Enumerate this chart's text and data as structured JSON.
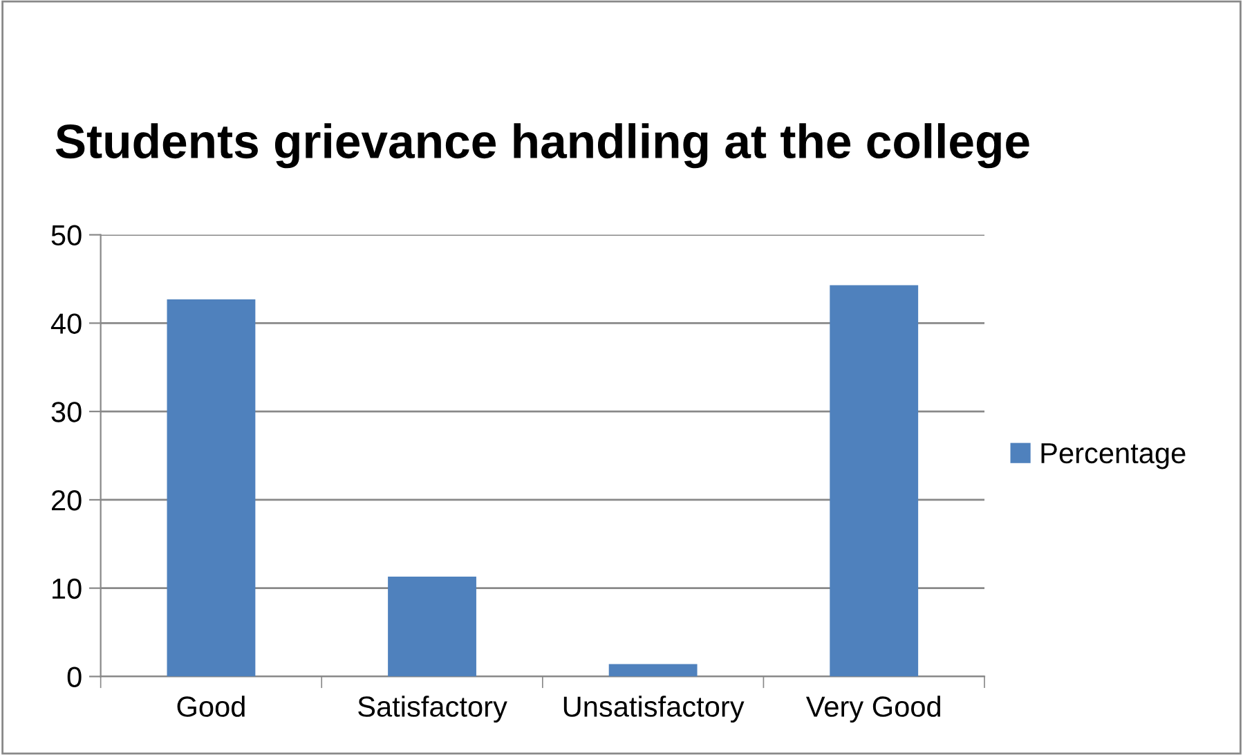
{
  "chart_data": {
    "type": "bar",
    "title": "Students grievance handling at the college",
    "categories": [
      "Good",
      "Satisfactory",
      "Unsatisfactory",
      "Very Good"
    ],
    "series": [
      {
        "name": "Percentage",
        "color": "#4f81bd",
        "values": [
          42.7,
          11.3,
          1.4,
          44.3
        ]
      }
    ],
    "ylim": [
      0,
      50
    ],
    "yticks": [
      0,
      10,
      20,
      30,
      40,
      50
    ],
    "grid": "y",
    "legend": "right"
  }
}
